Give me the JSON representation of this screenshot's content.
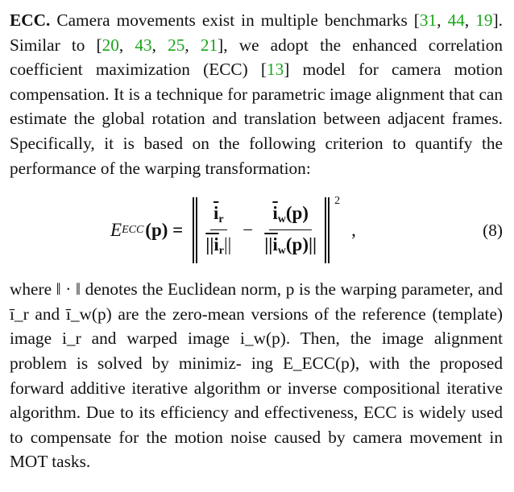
{
  "para1": {
    "heading": "ECC.",
    "t1": " Camera movements exist in multiple benchmarks [",
    "c1": "31",
    "t2": ", ",
    "c2": "44",
    "t3": ", ",
    "c3": "19",
    "t4": "]. Similar to [",
    "c4": "20",
    "t5": ", ",
    "c5": "43",
    "t6": ", ",
    "c6": "25",
    "t7": ", ",
    "c7": "21",
    "t8": "], we adopt the enhanced correlation coefficient maximization (ECC) [",
    "c8": "13",
    "t9": "] model for camera motion compensation. It is a technique for parametric image alignment that can estimate the global rotation and translation between adjacent frames. Specifically, it is based on the following criterion to quantify the performance of the warping transformation:"
  },
  "equation": {
    "lhs_E": "E",
    "lhs_sub": "ECC",
    "lhs_arg": "(p) =",
    "num1": "i",
    "num1_sub": "r",
    "den1": "||i",
    "den1_sub": "r",
    "den1_close": "||",
    "minus": "−",
    "num2": "i",
    "num2_sub": "w",
    "num2_arg": "(p)",
    "den2": "||i",
    "den2_sub": "w",
    "den2_arg": "(p)||",
    "power": "2",
    "comma": ",",
    "number": "(8)"
  },
  "para2": {
    "text": "where ‖ · ‖ denotes the Euclidean norm, p is the warping parameter, and ī_r and ī_w(p) are the zero-mean versions of the reference (template) image i_r and warped image i_w(p). Then, the image alignment problem is solved by minimiz- ing E_ECC(p), with the proposed forward additive iterative algorithm or inverse compositional iterative algorithm. Due to its efficiency and effectiveness, ECC is widely used to compensate for the motion noise caused by camera movement in MOT tasks."
  }
}
